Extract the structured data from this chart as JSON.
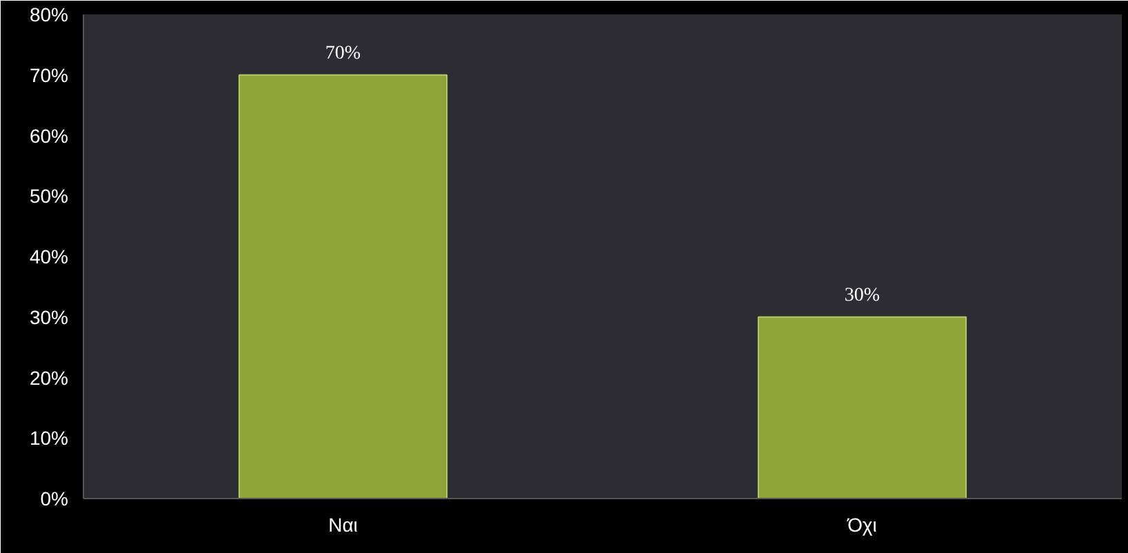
{
  "chart_data": {
    "type": "bar",
    "categories": [
      "Ναι",
      "Όχι"
    ],
    "values": [
      70,
      30
    ],
    "color": "#8fa53a",
    "value_labels": [
      "70%",
      "30%"
    ],
    "ylim": [
      0,
      80
    ],
    "yticks": [
      {
        "value": 0,
        "label": "0%"
      },
      {
        "value": 10,
        "label": "10%"
      },
      {
        "value": 20,
        "label": "20%"
      },
      {
        "value": 30,
        "label": "30%"
      },
      {
        "value": 40,
        "label": "40%"
      },
      {
        "value": 50,
        "label": "50%"
      },
      {
        "value": 60,
        "label": "60%"
      },
      {
        "value": 70,
        "label": "70%"
      },
      {
        "value": 80,
        "label": "80%"
      }
    ],
    "grid": false
  }
}
